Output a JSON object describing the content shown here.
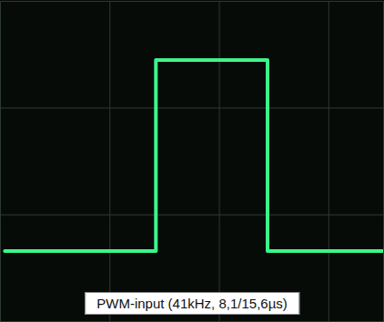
{
  "chart_data": {
    "type": "line",
    "title": "PWM-input (41kHz, 8,1/15,6µs)",
    "x": [
      0.04,
      1.42,
      1.42,
      2.44,
      2.44,
      3.5
    ],
    "values": [
      0.66,
      0.66,
      2.45,
      2.45,
      0.66,
      0.66
    ],
    "color": "#3cf58a",
    "xlim": [
      0,
      3.5
    ],
    "ylim": [
      0,
      3
    ],
    "xticks": [
      1,
      2,
      3
    ],
    "yticks": [
      1,
      2
    ],
    "grid": true,
    "tick_labels": false
  }
}
